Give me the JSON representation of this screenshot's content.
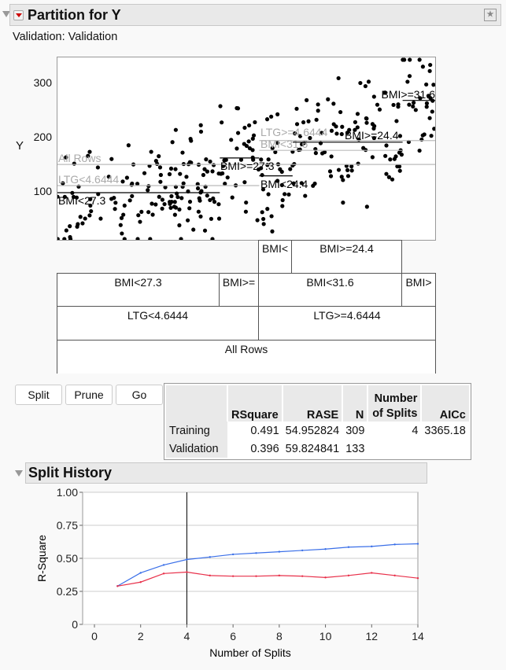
{
  "report": {
    "title": "Partition for Y",
    "validation_label": "Validation: Validation"
  },
  "scatter": {
    "y_axis_label": "Y",
    "y_ticks": [
      "100",
      "200",
      "300"
    ],
    "nodes": [
      {
        "label": "All Rows",
        "mean": 152,
        "x0": 0,
        "x1": 1,
        "color": "#bbbbbb"
      },
      {
        "label": "LTG<4.6444",
        "mean": 113,
        "x0": 0,
        "x1": 0.532,
        "color": "#bbbbbb"
      },
      {
        "label": "LTG>=4.6444",
        "mean": 196,
        "x0": 0.532,
        "x1": 1,
        "color": "#bbbbbb"
      },
      {
        "label": "BMI<31.6",
        "mean": 178,
        "x0": 0.532,
        "x1": 0.91,
        "color": "#bbbbbb"
      },
      {
        "label": "BMI<27.3",
        "mean": 100,
        "x0": 0,
        "x1": 0.428,
        "color": "#000000"
      },
      {
        "label": "BMI>=27.3",
        "mean": 164,
        "x0": 0.428,
        "x1": 0.532,
        "color": "#000000"
      },
      {
        "label": "BMI<24.4",
        "mean": 131,
        "x0": 0.532,
        "x1": 0.62,
        "color": "#000000"
      },
      {
        "label": "BMI>=24.4",
        "mean": 193,
        "x0": 0.62,
        "x1": 0.91,
        "color": "#000000"
      },
      {
        "label": "BMI>=31.6",
        "mean": 270,
        "x0": 0.91,
        "x1": 1,
        "color": "#000000"
      }
    ]
  },
  "tree": {
    "row1": [
      "BMI<",
      "BMI>=24.4"
    ],
    "row2": [
      "BMI<27.3",
      "BMI>=",
      "BMI<31.6",
      "BMI>"
    ],
    "row3": [
      "LTG<4.6444",
      "LTG>=4.6444"
    ],
    "row4": [
      "All Rows"
    ]
  },
  "buttons": {
    "split": "Split",
    "prune": "Prune",
    "go": "Go"
  },
  "fit_table": {
    "headers": [
      "",
      "RSquare",
      "RASE",
      "N",
      "Number of Splits",
      "AICc"
    ],
    "rows": [
      [
        "Training",
        "0.491",
        "54.952824",
        "309",
        "4",
        "3365.18"
      ],
      [
        "Validation",
        "0.396",
        "59.824841",
        "133",
        "",
        ""
      ]
    ]
  },
  "split_history": {
    "title": "Split History"
  },
  "chart_data": {
    "type": "line",
    "xlabel": "Number of Splits",
    "ylabel": "R-Square",
    "xlim": [
      0,
      14
    ],
    "ylim": [
      0,
      1
    ],
    "x_ticks": [
      "0",
      "2",
      "4",
      "6",
      "8",
      "10",
      "12",
      "14"
    ],
    "y_ticks": [
      "0",
      "0.25",
      "0.50",
      "0.75",
      "1.00"
    ],
    "x": [
      1,
      2,
      3,
      4,
      5,
      6,
      7,
      8,
      9,
      10,
      11,
      12,
      13,
      14
    ],
    "series": [
      {
        "color": "#3a6fe8",
        "values": [
          0.29,
          0.39,
          0.45,
          0.491,
          0.51,
          0.53,
          0.54,
          0.55,
          0.56,
          0.57,
          0.585,
          0.59,
          0.605,
          0.61
        ]
      },
      {
        "color": "#e8304a",
        "values": [
          0.29,
          0.32,
          0.385,
          0.396,
          0.37,
          0.365,
          0.365,
          0.37,
          0.365,
          0.355,
          0.37,
          0.39,
          0.37,
          0.35
        ]
      }
    ],
    "current_splits": 4,
    "grid": true
  }
}
